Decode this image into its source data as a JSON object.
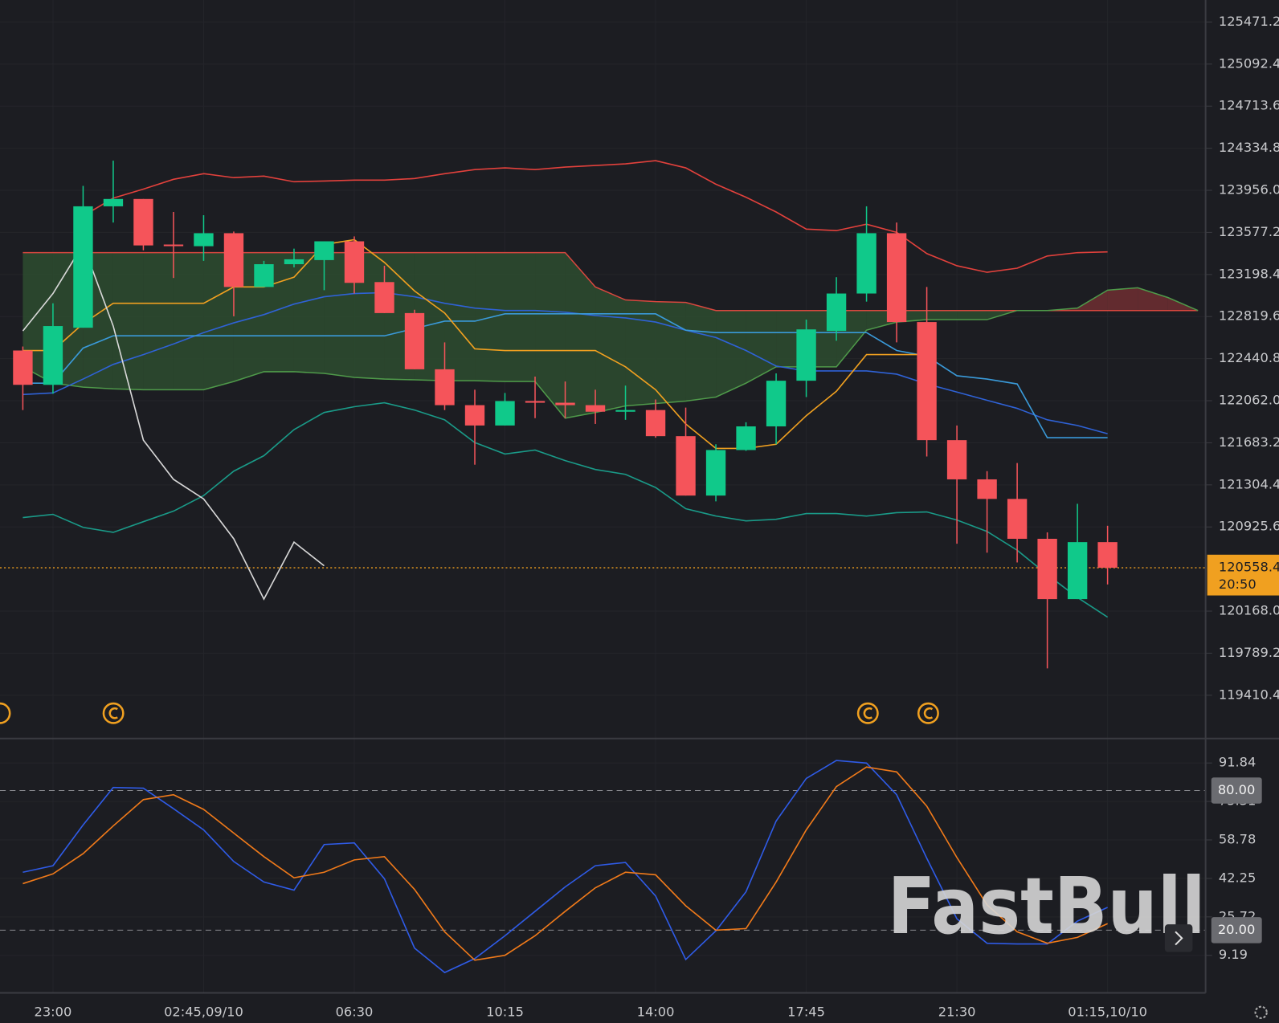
{
  "chart_data": [
    {
      "type": "candlestick",
      "categories": [
        null,
        "23:00",
        null,
        null,
        null,
        null,
        "02:45,09/10",
        null,
        null,
        null,
        null,
        "06:30",
        null,
        null,
        null,
        null,
        "10:15",
        null,
        null,
        null,
        null,
        "14:00",
        null,
        null,
        null,
        null,
        "17:45",
        null,
        null,
        null,
        null,
        "21:30",
        null,
        null,
        null,
        null,
        "01:15,10/10",
        null,
        null,
        null
      ],
      "open": [
        122514,
        122205,
        122719,
        123812,
        123878,
        123468,
        123453,
        123570,
        123086,
        123291,
        123328,
        123497,
        123130,
        122851,
        122345,
        122022,
        121839,
        122059,
        122044,
        122022,
        121963,
        121978,
        121743,
        121208,
        121618,
        121831,
        122242,
        122690,
        123027,
        123570,
        122770,
        121707,
        121354,
        121178,
        120819,
        120276,
        120789,
        null,
        null,
        null
      ],
      "high": [
        122550,
        122939,
        123996,
        124223,
        123878,
        123761,
        123732,
        123585,
        123321,
        123431,
        123497,
        123541,
        123277,
        122881,
        122587,
        122161,
        122132,
        122279,
        122235,
        122161,
        122198,
        122073,
        122000,
        121670,
        121868,
        122308,
        122792,
        123174,
        123812,
        123666,
        123086,
        121839,
        121428,
        121501,
        120877,
        121134,
        120936,
        null,
        null,
        null
      ],
      "low": [
        121978,
        122125,
        122719,
        123666,
        123416,
        123167,
        123321,
        122822,
        123086,
        123262,
        123057,
        123027,
        122851,
        122345,
        121978,
        121486,
        121839,
        121905,
        121905,
        121853,
        121890,
        121729,
        121208,
        121156,
        121611,
        121670,
        122095,
        122602,
        122954,
        122587,
        121560,
        120775,
        120694,
        120606,
        119652,
        120276,
        120408,
        null,
        null,
        null
      ],
      "close": [
        122205,
        122734,
        123812,
        123878,
        123460,
        123460,
        123570,
        123086,
        123291,
        123335,
        123497,
        123123,
        122851,
        122345,
        122022,
        121839,
        122059,
        122044,
        122022,
        121963,
        121978,
        121743,
        121208,
        121618,
        121831,
        122242,
        122704,
        123027,
        123570,
        122770,
        121707,
        121354,
        121178,
        120819,
        120276,
        120789,
        120558.4,
        null,
        null,
        null
      ],
      "up_color": "#10c98a",
      "down_color": "#f5545a",
      "cloud": {
        "up_color": "#2c4a2f",
        "down_color": "#6a2d31",
        "span_b": {
          "color": "#d9473f",
          "values": [
            123395,
            123395,
            123395,
            123395,
            123395,
            123395,
            123395,
            123395,
            123395,
            123395,
            123395,
            123395,
            123395,
            123395,
            123395,
            123395,
            123395,
            123395,
            123395,
            123086,
            122969,
            122954,
            122947,
            122874,
            122874,
            122874,
            122874,
            122874,
            122874,
            122874,
            122874,
            122874,
            122874,
            122874,
            122874,
            122874,
            122874,
            122874,
            122874,
            122874
          ]
        },
        "span_a": {
          "color": "#4f9a4a",
          "values": [
            122367,
            122220,
            122184,
            122169,
            122161,
            122161,
            122161,
            122235,
            122323,
            122323,
            122308,
            122272,
            122257,
            122250,
            122242,
            122242,
            122235,
            122235,
            121905,
            121956,
            122015,
            122037,
            122059,
            122095,
            122220,
            122367,
            122367,
            122367,
            122697,
            122770,
            122792,
            122792,
            122792,
            122874,
            122874,
            122896,
            123057,
            123079,
            122991,
            122874
          ]
        }
      },
      "lines": [
        {
          "color": "#e2413c",
          "values": [
            null,
            null,
            123725,
            123886,
            123967,
            124055,
            124106,
            124070,
            124084,
            124033,
            124040,
            124048,
            124048,
            124062,
            124106,
            124143,
            124158,
            124143,
            124165,
            124180,
            124194,
            124223,
            124158,
            124011,
            123894,
            123761,
            123607,
            123593,
            123651,
            123578,
            123387,
            123277,
            123218,
            123255,
            123365,
            123395,
            123402,
            null,
            null,
            null
          ]
        },
        {
          "color": "#1a9a88",
          "values": [
            121010,
            121039,
            120922,
            120877,
            120973,
            121068,
            121208,
            121428,
            121567,
            121802,
            121956,
            122008,
            122044,
            121978,
            121890,
            121685,
            121582,
            121618,
            121523,
            121443,
            121399,
            121281,
            121090,
            121024,
            120980,
            120995,
            121046,
            121046,
            121024,
            121054,
            121061,
            120988,
            120885,
            120716,
            120496,
            120291,
            120114,
            null,
            null,
            null
          ]
        },
        {
          "color": "#2f62d6",
          "values": [
            122118,
            122132,
            122257,
            122389,
            122477,
            122573,
            122675,
            122763,
            122837,
            122932,
            122998,
            123027,
            123035,
            122998,
            122939,
            122896,
            122874,
            122874,
            122859,
            122829,
            122807,
            122770,
            122697,
            122631,
            122514,
            122374,
            122330,
            122330,
            122330,
            122301,
            122213,
            122140,
            122066,
            121993,
            121890,
            121839,
            121765,
            null,
            null,
            null
          ]
        },
        {
          "color": "#3a9ad9",
          "values": [
            122220,
            122220,
            122536,
            122646,
            122646,
            122646,
            122646,
            122646,
            122646,
            122646,
            122646,
            122646,
            122646,
            122712,
            122778,
            122778,
            122844,
            122844,
            122844,
            122844,
            122844,
            122844,
            122697,
            122675,
            122675,
            122675,
            122675,
            122675,
            122675,
            122514,
            122463,
            122287,
            122257,
            122213,
            121729,
            121729,
            121729,
            null,
            null,
            null
          ]
        },
        {
          "color": "#f0a020",
          "values": [
            122514,
            122514,
            122756,
            122939,
            122939,
            122939,
            122939,
            123086,
            123086,
            123174,
            123468,
            123512,
            123307,
            123050,
            122851,
            122529,
            122514,
            122514,
            122514,
            122514,
            122367,
            122161,
            121853,
            121633,
            121633,
            121670,
            121927,
            122147,
            122477,
            122477,
            122477,
            null,
            null,
            null,
            null,
            null,
            null,
            null,
            null,
            null
          ]
        },
        {
          "color": "#d8d8d8",
          "values": [
            122690,
            123027,
            123468,
            122734,
            121707,
            121354,
            121178,
            120819,
            120276,
            120789,
            120576,
            null,
            null,
            null,
            null,
            null,
            null,
            null,
            null,
            null,
            null,
            null,
            null,
            null,
            null,
            null,
            null,
            null,
            null,
            null,
            null,
            null,
            null,
            null,
            null,
            null,
            null,
            null,
            null,
            null
          ]
        }
      ],
      "ylim": [
        119028.4,
        125669.3
      ],
      "yticks": [
        125471.2,
        125092.4,
        124713.6,
        124334.8,
        {
          "value": 123956,
          "label": "123956.0"
        },
        123577.2,
        123198.4,
        122819.6,
        122440.8,
        {
          "value": 122062,
          "label": "122062.0"
        },
        121683.2,
        121304.4,
        120925.6,
        {
          "value": 120168,
          "label": "120168.0"
        },
        119789.2,
        119410.4
      ],
      "grid": true,
      "last_price": 120558.4,
      "countdown": "20:50",
      "last_price_color": "#f0a020"
    },
    {
      "type": "line",
      "ylim": [
        -6.92,
        102.0
      ],
      "yticks": [
        91.84,
        75.31,
        58.78,
        42.25,
        25.72,
        9.19
      ],
      "levels": [
        {
          "value": 80,
          "label": "80.00"
        },
        {
          "value": 20,
          "label": "20.00"
        }
      ],
      "series": [
        {
          "color": "#2f5be6",
          "values": [
            44.9,
            47.7,
            65.2,
            81.3,
            81.0,
            72.2,
            63.1,
            49.5,
            40.7,
            37.2,
            56.8,
            57.5,
            42.1,
            12.3,
            1.8,
            7.8,
            17.6,
            28.1,
            38.6,
            47.7,
            49.1,
            34.7,
            7.4,
            19.7,
            36.5,
            66.9,
            85.2,
            92.9,
            91.8,
            78.2,
            50.9,
            24.9,
            14.4,
            14.1,
            14.1,
            23.9,
            29.8,
            null,
            null,
            null
          ]
        },
        {
          "color": "#f07a1a",
          "values": [
            40.0,
            44.2,
            52.9,
            64.8,
            76.1,
            78.2,
            71.9,
            61.7,
            51.6,
            42.5,
            44.9,
            50.2,
            51.6,
            37.5,
            19.3,
            7.1,
            9.2,
            17.6,
            28.1,
            38.2,
            44.9,
            43.8,
            30.5,
            20.0,
            20.7,
            40.7,
            63.1,
            81.7,
            90.1,
            88.0,
            73.3,
            51.2,
            30.9,
            19.3,
            14.4,
            16.9,
            22.8,
            null,
            null,
            null
          ]
        }
      ]
    }
  ],
  "watermark": "FastBull"
}
